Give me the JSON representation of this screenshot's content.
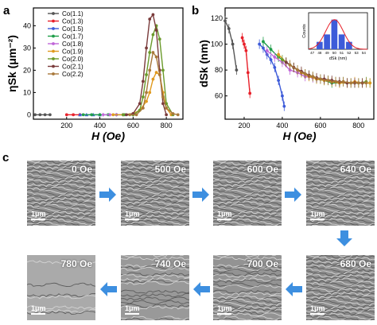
{
  "panels": {
    "a": "a",
    "b": "b",
    "c": "c"
  },
  "chart_data": [
    {
      "id": "a",
      "type": "line",
      "xlabel": "H (Oe)",
      "ylabel": "ηSk (μm⁻²)",
      "xlim": [
        0,
        900
      ],
      "ylim": [
        -2,
        48
      ],
      "xticks": [
        "200",
        "400",
        "600",
        "800"
      ],
      "yticks": [
        "0",
        "10",
        "20",
        "30",
        "40"
      ],
      "legend_position": "top-left",
      "series": [
        {
          "name": "Co(1.1)",
          "color": "#555555",
          "marker": "circle",
          "x": [
            10,
            40,
            70,
            100
          ],
          "y": [
            0,
            0,
            0,
            0
          ]
        },
        {
          "name": "Co(1.3)",
          "color": "#e8202a",
          "marker": "circle",
          "x": [
            200,
            240,
            280
          ],
          "y": [
            0,
            0,
            0
          ]
        },
        {
          "name": "Co(1.5)",
          "color": "#3d5bd9",
          "marker": "triangle",
          "x": [
            280,
            320,
            360,
            400
          ],
          "y": [
            0,
            0,
            0,
            0
          ]
        },
        {
          "name": "Co(1.7)",
          "color": "#1f9e4a",
          "marker": "circle",
          "x": [
            300,
            350,
            400,
            450,
            500,
            550,
            600
          ],
          "y": [
            0,
            0,
            0,
            0,
            0,
            0,
            0
          ]
        },
        {
          "name": "Co(1.8)",
          "color": "#c066d8",
          "marker": "diamond",
          "x": [
            420,
            460,
            500,
            540
          ],
          "y": [
            0,
            0,
            0,
            0
          ]
        },
        {
          "name": "Co(1.9)",
          "color": "#e09a1f",
          "marker": "circle",
          "x": [
            480,
            540,
            600,
            640,
            680,
            700,
            720,
            740,
            760,
            780,
            800,
            830
          ],
          "y": [
            0,
            0,
            0.5,
            2,
            6,
            10,
            16,
            19,
            18,
            10,
            3,
            0
          ]
        },
        {
          "name": "Co(2.0)",
          "color": "#6a9a2a",
          "marker": "circle",
          "x": [
            540,
            600,
            640,
            660,
            680,
            700,
            720,
            740,
            760,
            780,
            800,
            840
          ],
          "y": [
            0,
            0,
            2,
            8,
            18,
            28,
            36,
            40,
            34,
            20,
            5,
            0
          ]
        },
        {
          "name": "Co(2.1)",
          "color": "#7a3b3b",
          "marker": "circle",
          "x": [
            560,
            600,
            640,
            660,
            680,
            700,
            720,
            740,
            760,
            780,
            800
          ],
          "y": [
            0,
            0.5,
            5,
            15,
            30,
            43,
            45,
            38,
            20,
            5,
            0
          ]
        },
        {
          "name": "Co(2.2)",
          "color": "#a8783a",
          "marker": "circle",
          "x": [
            580,
            620,
            660,
            680,
            700,
            720,
            740,
            760,
            780,
            800,
            840,
            870
          ],
          "y": [
            0,
            0,
            3,
            10,
            20,
            28,
            26,
            18,
            8,
            3,
            0.5,
            0
          ]
        }
      ]
    },
    {
      "id": "b",
      "type": "line",
      "xlabel": "H (Oe)",
      "ylabel": "dSk (nm)",
      "xlim": [
        100,
        880
      ],
      "ylim": [
        42,
        128
      ],
      "xticks": [
        "200",
        "400",
        "600",
        "800"
      ],
      "yticks": [
        "60",
        "80",
        "100",
        "120"
      ],
      "series": [
        {
          "name": "Co(1.1)",
          "color": "#555555",
          "x": [
            100,
            120,
            140,
            160
          ],
          "y": [
            118,
            112,
            100,
            80
          ]
        },
        {
          "name": "Co(1.3)",
          "color": "#e8202a",
          "x": [
            190,
            200,
            210,
            220,
            230
          ],
          "y": [
            105,
            100,
            95,
            78,
            62
          ]
        },
        {
          "name": "Co(1.5)",
          "color": "#3d5bd9",
          "x": [
            280,
            300,
            320,
            340,
            360,
            380,
            400,
            410
          ],
          "y": [
            100,
            97,
            92,
            88,
            82,
            72,
            60,
            52
          ]
        },
        {
          "name": "Co(1.7)",
          "color": "#1f9e4a",
          "x": [
            300,
            340,
            380,
            420,
            460,
            500,
            540,
            580,
            620,
            660,
            700,
            740,
            780,
            820,
            860
          ],
          "y": [
            102,
            96,
            90,
            86,
            82,
            78,
            76,
            73,
            72,
            70,
            70,
            70,
            70,
            70,
            70
          ]
        },
        {
          "name": "Co(1.8)",
          "color": "#c066d8",
          "x": [
            320,
            360,
            400,
            440,
            480,
            520,
            560
          ],
          "y": [
            95,
            90,
            86,
            80,
            78,
            75,
            74
          ]
        },
        {
          "name": "Co(1.9)",
          "color": "#e09a1f",
          "x": [
            380,
            420,
            460,
            500,
            540,
            580,
            620,
            660,
            700,
            740,
            780,
            820,
            860
          ],
          "y": [
            92,
            86,
            82,
            78,
            75,
            73,
            72,
            71,
            70,
            70,
            71,
            70,
            70
          ]
        },
        {
          "name": "Co(2.0)",
          "color": "#6a9a2a",
          "x": [
            400,
            440,
            480,
            520,
            560,
            600,
            640,
            680,
            720,
            760,
            800,
            840
          ],
          "y": [
            88,
            84,
            80,
            77,
            75,
            73,
            72,
            71,
            71,
            70,
            70,
            71
          ]
        },
        {
          "name": "Co(2.1)",
          "color": "#7a3b3b",
          "x": [
            420,
            460,
            500,
            540,
            580,
            620,
            660,
            700,
            740,
            780,
            820
          ],
          "y": [
            86,
            82,
            79,
            76,
            74,
            73,
            72,
            71,
            70,
            70,
            70
          ]
        },
        {
          "name": "Co(2.2)",
          "color": "#a8783a",
          "x": [
            440,
            480,
            520,
            560,
            600,
            640,
            680,
            720,
            760,
            800,
            840
          ],
          "y": [
            84,
            80,
            77,
            75,
            73,
            72,
            71,
            71,
            70,
            70,
            70
          ]
        }
      ],
      "inset": {
        "type": "bar",
        "xlabel": "dSk (nm)",
        "ylabel": "Counts",
        "categories": [
          "47",
          "48",
          "49",
          "50",
          "51",
          "52",
          "53",
          "54"
        ],
        "values": [
          0,
          1,
          2,
          4,
          2,
          1,
          0,
          0
        ],
        "fit_color": "#e8202a",
        "bar_color": "#3d5bd9"
      }
    }
  ],
  "images": [
    {
      "label": "0 Oe",
      "scale": "1μm",
      "tone": "#8f8f8f"
    },
    {
      "label": "500 Oe",
      "scale": "1μm",
      "tone": "#8f8f8f"
    },
    {
      "label": "600 Oe",
      "scale": "1μm",
      "tone": "#8f8f8f"
    },
    {
      "label": "640 Oe",
      "scale": "1μm",
      "tone": "#8f8f8f"
    },
    {
      "label": "680 Oe",
      "scale": "1μm",
      "tone": "#8f8f8f"
    },
    {
      "label": "700 Oe",
      "scale": "1μm",
      "tone": "#939393"
    },
    {
      "label": "740 Oe",
      "scale": "1μm",
      "tone": "#999999"
    },
    {
      "label": "780 Oe",
      "scale": "1μm",
      "tone": "#aaaaaa"
    }
  ],
  "arrow_color": "#3d8fe0"
}
